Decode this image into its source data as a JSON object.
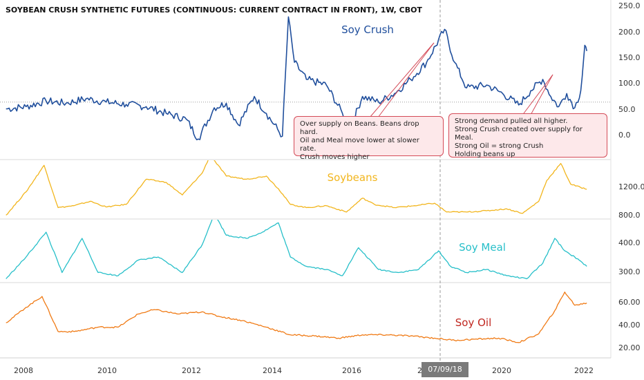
{
  "title": "SOYBEAN CRUSH SYNTHETIC FUTURES (CONTINUOUS: CURRENT CONTRACT IN FRONT), 1W, CBOT",
  "colors": {
    "crush": "#1f4e9c",
    "soybeans": "#f2b51c",
    "meal": "#26bfc9",
    "oil": "#f07a14",
    "note_border": "#d44a57",
    "note_fill": "#fde8ea"
  },
  "cursor_label": "07/09/18",
  "annotations": [
    "Over supply on Beans.  Beans drop hard.\nOil and Meal move lower at slower rate.\nCrush moves higher",
    "Strong demand pulled all higher.\nStrong Crush created over supply for Meal.\nStrong Oil = strong Crush\n   Holding beans up"
  ],
  "chart_data": [
    {
      "type": "line",
      "name": "Soy Crush",
      "x_ticks": [
        "2008",
        "2010",
        "2012",
        "2014",
        "2016",
        "2018",
        "2020",
        "2022"
      ],
      "y_ticks": [
        "0.0",
        "50.0",
        "100.0",
        "150.0",
        "200.0",
        "250.0"
      ],
      "ylim": [
        -20,
        250
      ],
      "reference_line": 80,
      "points": [
        [
          2007.5,
          68
        ],
        [
          2008.0,
          72
        ],
        [
          2008.5,
          82
        ],
        [
          2009.0,
          78
        ],
        [
          2009.5,
          86
        ],
        [
          2010.0,
          80
        ],
        [
          2010.5,
          76
        ],
        [
          2011.0,
          72
        ],
        [
          2011.5,
          60
        ],
        [
          2012.0,
          50
        ],
        [
          2012.3,
          15
        ],
        [
          2012.7,
          70
        ],
        [
          2013.0,
          78
        ],
        [
          2013.3,
          40
        ],
        [
          2013.7,
          90
        ],
        [
          2014.0,
          60
        ],
        [
          2014.4,
          20
        ],
        [
          2014.55,
          230
        ],
        [
          2014.7,
          150
        ],
        [
          2015.0,
          120
        ],
        [
          2015.5,
          110
        ],
        [
          2015.9,
          60
        ],
        [
          2016.1,
          35
        ],
        [
          2016.4,
          90
        ],
        [
          2016.8,
          80
        ],
        [
          2017.2,
          95
        ],
        [
          2017.6,
          120
        ],
        [
          2018.0,
          150
        ],
        [
          2018.45,
          208
        ],
        [
          2018.7,
          150
        ],
        [
          2019.0,
          105
        ],
        [
          2019.5,
          110
        ],
        [
          2019.9,
          95
        ],
        [
          2020.3,
          75
        ],
        [
          2020.6,
          100
        ],
        [
          2020.9,
          120
        ],
        [
          2021.1,
          90
        ],
        [
          2021.3,
          72
        ],
        [
          2021.5,
          95
        ],
        [
          2021.7,
          70
        ],
        [
          2021.85,
          100
        ],
        [
          2021.95,
          180
        ],
        [
          2022.0,
          170
        ]
      ]
    },
    {
      "type": "line",
      "name": "Soybeans",
      "y_ticks": [
        "800.0",
        "1200.0"
      ],
      "ylim": [
        780,
        1700
      ],
      "points": [
        [
          2007.5,
          830
        ],
        [
          2008.0,
          1200
        ],
        [
          2008.45,
          1620
        ],
        [
          2008.8,
          950
        ],
        [
          2009.2,
          980
        ],
        [
          2009.6,
          1050
        ],
        [
          2010.0,
          960
        ],
        [
          2010.5,
          1000
        ],
        [
          2011.0,
          1400
        ],
        [
          2011.5,
          1350
        ],
        [
          2011.9,
          1150
        ],
        [
          2012.4,
          1500
        ],
        [
          2012.6,
          1780
        ],
        [
          2013.0,
          1450
        ],
        [
          2013.5,
          1400
        ],
        [
          2014.0,
          1450
        ],
        [
          2014.3,
          1250
        ],
        [
          2014.6,
          1000
        ],
        [
          2015.0,
          950
        ],
        [
          2015.5,
          980
        ],
        [
          2016.0,
          880
        ],
        [
          2016.4,
          1100
        ],
        [
          2016.7,
          1000
        ],
        [
          2017.2,
          950
        ],
        [
          2017.7,
          980
        ],
        [
          2018.2,
          1020
        ],
        [
          2018.5,
          880
        ],
        [
          2019.0,
          880
        ],
        [
          2019.5,
          900
        ],
        [
          2020.0,
          930
        ],
        [
          2020.4,
          860
        ],
        [
          2020.8,
          1050
        ],
        [
          2021.0,
          1380
        ],
        [
          2021.35,
          1650
        ],
        [
          2021.6,
          1320
        ],
        [
          2022.0,
          1240
        ]
      ]
    },
    {
      "type": "line",
      "name": "Soy Meal",
      "y_ticks": [
        "300.0",
        "400.0"
      ],
      "ylim": [
        280,
        480
      ],
      "points": [
        [
          2007.5,
          290
        ],
        [
          2008.0,
          360
        ],
        [
          2008.5,
          440
        ],
        [
          2008.9,
          310
        ],
        [
          2009.4,
          420
        ],
        [
          2009.8,
          310
        ],
        [
          2010.3,
          300
        ],
        [
          2010.8,
          350
        ],
        [
          2011.3,
          360
        ],
        [
          2011.9,
          310
        ],
        [
          2012.4,
          400
        ],
        [
          2012.7,
          500
        ],
        [
          2013.0,
          430
        ],
        [
          2013.5,
          420
        ],
        [
          2013.9,
          440
        ],
        [
          2014.3,
          470
        ],
        [
          2014.6,
          360
        ],
        [
          2015.0,
          330
        ],
        [
          2015.5,
          320
        ],
        [
          2015.9,
          300
        ],
        [
          2016.3,
          390
        ],
        [
          2016.8,
          320
        ],
        [
          2017.3,
          310
        ],
        [
          2017.8,
          320
        ],
        [
          2018.3,
          380
        ],
        [
          2018.6,
          330
        ],
        [
          2019.0,
          310
        ],
        [
          2019.5,
          320
        ],
        [
          2020.0,
          300
        ],
        [
          2020.5,
          290
        ],
        [
          2020.9,
          340
        ],
        [
          2021.2,
          420
        ],
        [
          2021.45,
          380
        ],
        [
          2021.7,
          360
        ],
        [
          2022.0,
          330
        ]
      ]
    },
    {
      "type": "line",
      "name": "Soy Oil",
      "y_ticks": [
        "20.00",
        "40.00",
        "60.00"
      ],
      "ylim": [
        12,
        80
      ],
      "points": [
        [
          2007.5,
          44
        ],
        [
          2008.0,
          58
        ],
        [
          2008.4,
          68
        ],
        [
          2008.8,
          36
        ],
        [
          2009.2,
          36
        ],
        [
          2009.8,
          40
        ],
        [
          2010.3,
          40
        ],
        [
          2010.8,
          52
        ],
        [
          2011.2,
          56
        ],
        [
          2011.8,
          52
        ],
        [
          2012.4,
          54
        ],
        [
          2012.8,
          50
        ],
        [
          2013.4,
          46
        ],
        [
          2014.0,
          40
        ],
        [
          2014.6,
          33
        ],
        [
          2015.2,
          32
        ],
        [
          2015.8,
          30
        ],
        [
          2016.4,
          33
        ],
        [
          2017.0,
          33
        ],
        [
          2017.6,
          32
        ],
        [
          2018.2,
          30
        ],
        [
          2018.7,
          28
        ],
        [
          2019.2,
          29
        ],
        [
          2019.8,
          30
        ],
        [
          2020.3,
          26
        ],
        [
          2020.8,
          34
        ],
        [
          2021.2,
          55
        ],
        [
          2021.45,
          72
        ],
        [
          2021.7,
          60
        ],
        [
          2022.0,
          62
        ]
      ]
    }
  ]
}
